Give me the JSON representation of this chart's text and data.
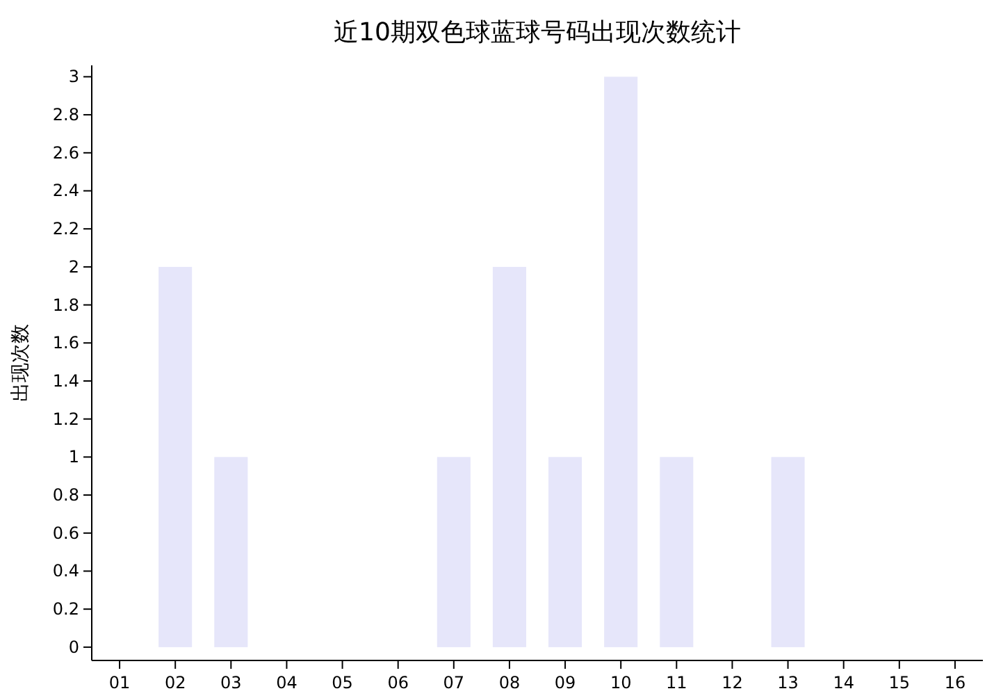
{
  "chart_data": {
    "type": "bar",
    "title": "近10期双色球蓝球号码出现次数统计",
    "ylabel": "出现次数",
    "categories": [
      "01",
      "02",
      "03",
      "04",
      "05",
      "06",
      "07",
      "08",
      "09",
      "10",
      "11",
      "12",
      "13",
      "14",
      "15",
      "16"
    ],
    "values": [
      0,
      2,
      1,
      0,
      0,
      0,
      1,
      2,
      1,
      3,
      1,
      0,
      1,
      0,
      0,
      0
    ],
    "color": "#e6e6fa",
    "ylim": [
      -0.07,
      3.06
    ],
    "yticks": [
      0,
      0.2,
      0.4,
      0.6,
      0.8,
      1,
      1.2,
      1.4,
      1.6,
      1.8,
      2,
      2.2,
      2.4,
      2.6,
      2.8,
      3
    ],
    "grid": false
  }
}
